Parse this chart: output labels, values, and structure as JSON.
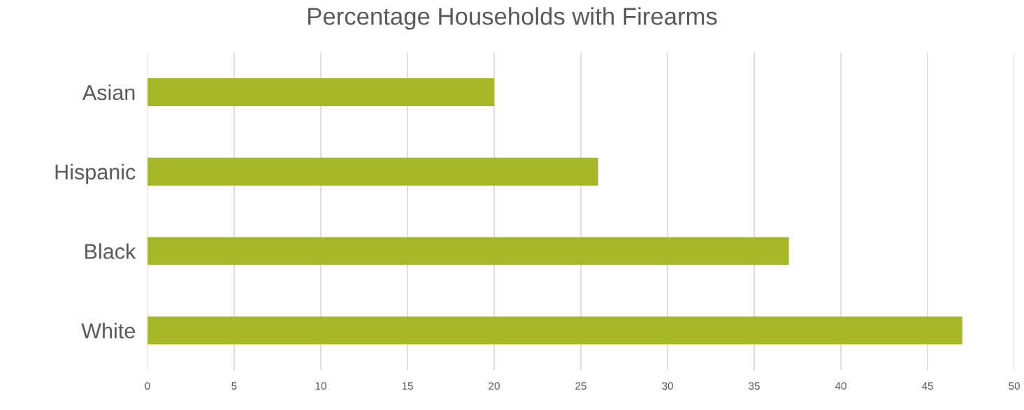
{
  "chart_data": {
    "type": "bar",
    "orientation": "horizontal",
    "title": "Percentage Households with Firearms",
    "categories": [
      "Asian",
      "Hispanic",
      "Black",
      "White"
    ],
    "series": [
      {
        "color": "#a6b727",
        "values": [
          20,
          26,
          37,
          47
        ]
      }
    ],
    "xlim": [
      0,
      50
    ],
    "xticks": [
      0,
      5,
      10,
      15,
      20,
      25,
      30,
      35,
      40,
      45,
      50
    ],
    "grid": "x"
  }
}
